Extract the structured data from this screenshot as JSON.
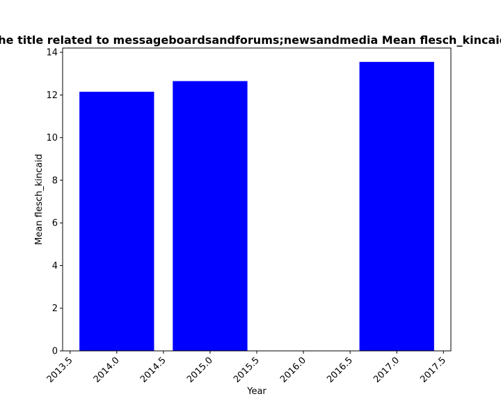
{
  "chart_data": {
    "type": "bar",
    "title": "Mean score of the title related to messageboardsandforums;newsandmedia Mean flesch_kincaid in previous year",
    "xlabel": "Year",
    "ylabel": "Mean flesch_kincaid",
    "x": [
      2014,
      2015,
      2017
    ],
    "values": [
      12.15,
      12.65,
      13.55
    ],
    "bar_width": 0.8,
    "xlim": [
      2013.42,
      2017.58
    ],
    "ylim": [
      0,
      14.2
    ],
    "x_ticks": [
      2013.5,
      2014.0,
      2014.5,
      2015.0,
      2015.5,
      2016.0,
      2016.5,
      2017.0,
      2017.5
    ],
    "x_tick_labels": [
      "2013.5",
      "2014.0",
      "2014.5",
      "2015.0",
      "2015.5",
      "2016.0",
      "2016.5",
      "2017.0",
      "2017.5"
    ],
    "y_ticks": [
      0,
      2,
      4,
      6,
      8,
      10,
      12,
      14
    ],
    "y_tick_labels": [
      "0",
      "2",
      "4",
      "6",
      "8",
      "10",
      "12",
      "14"
    ],
    "bar_color": "#0000ff",
    "grid": false
  }
}
